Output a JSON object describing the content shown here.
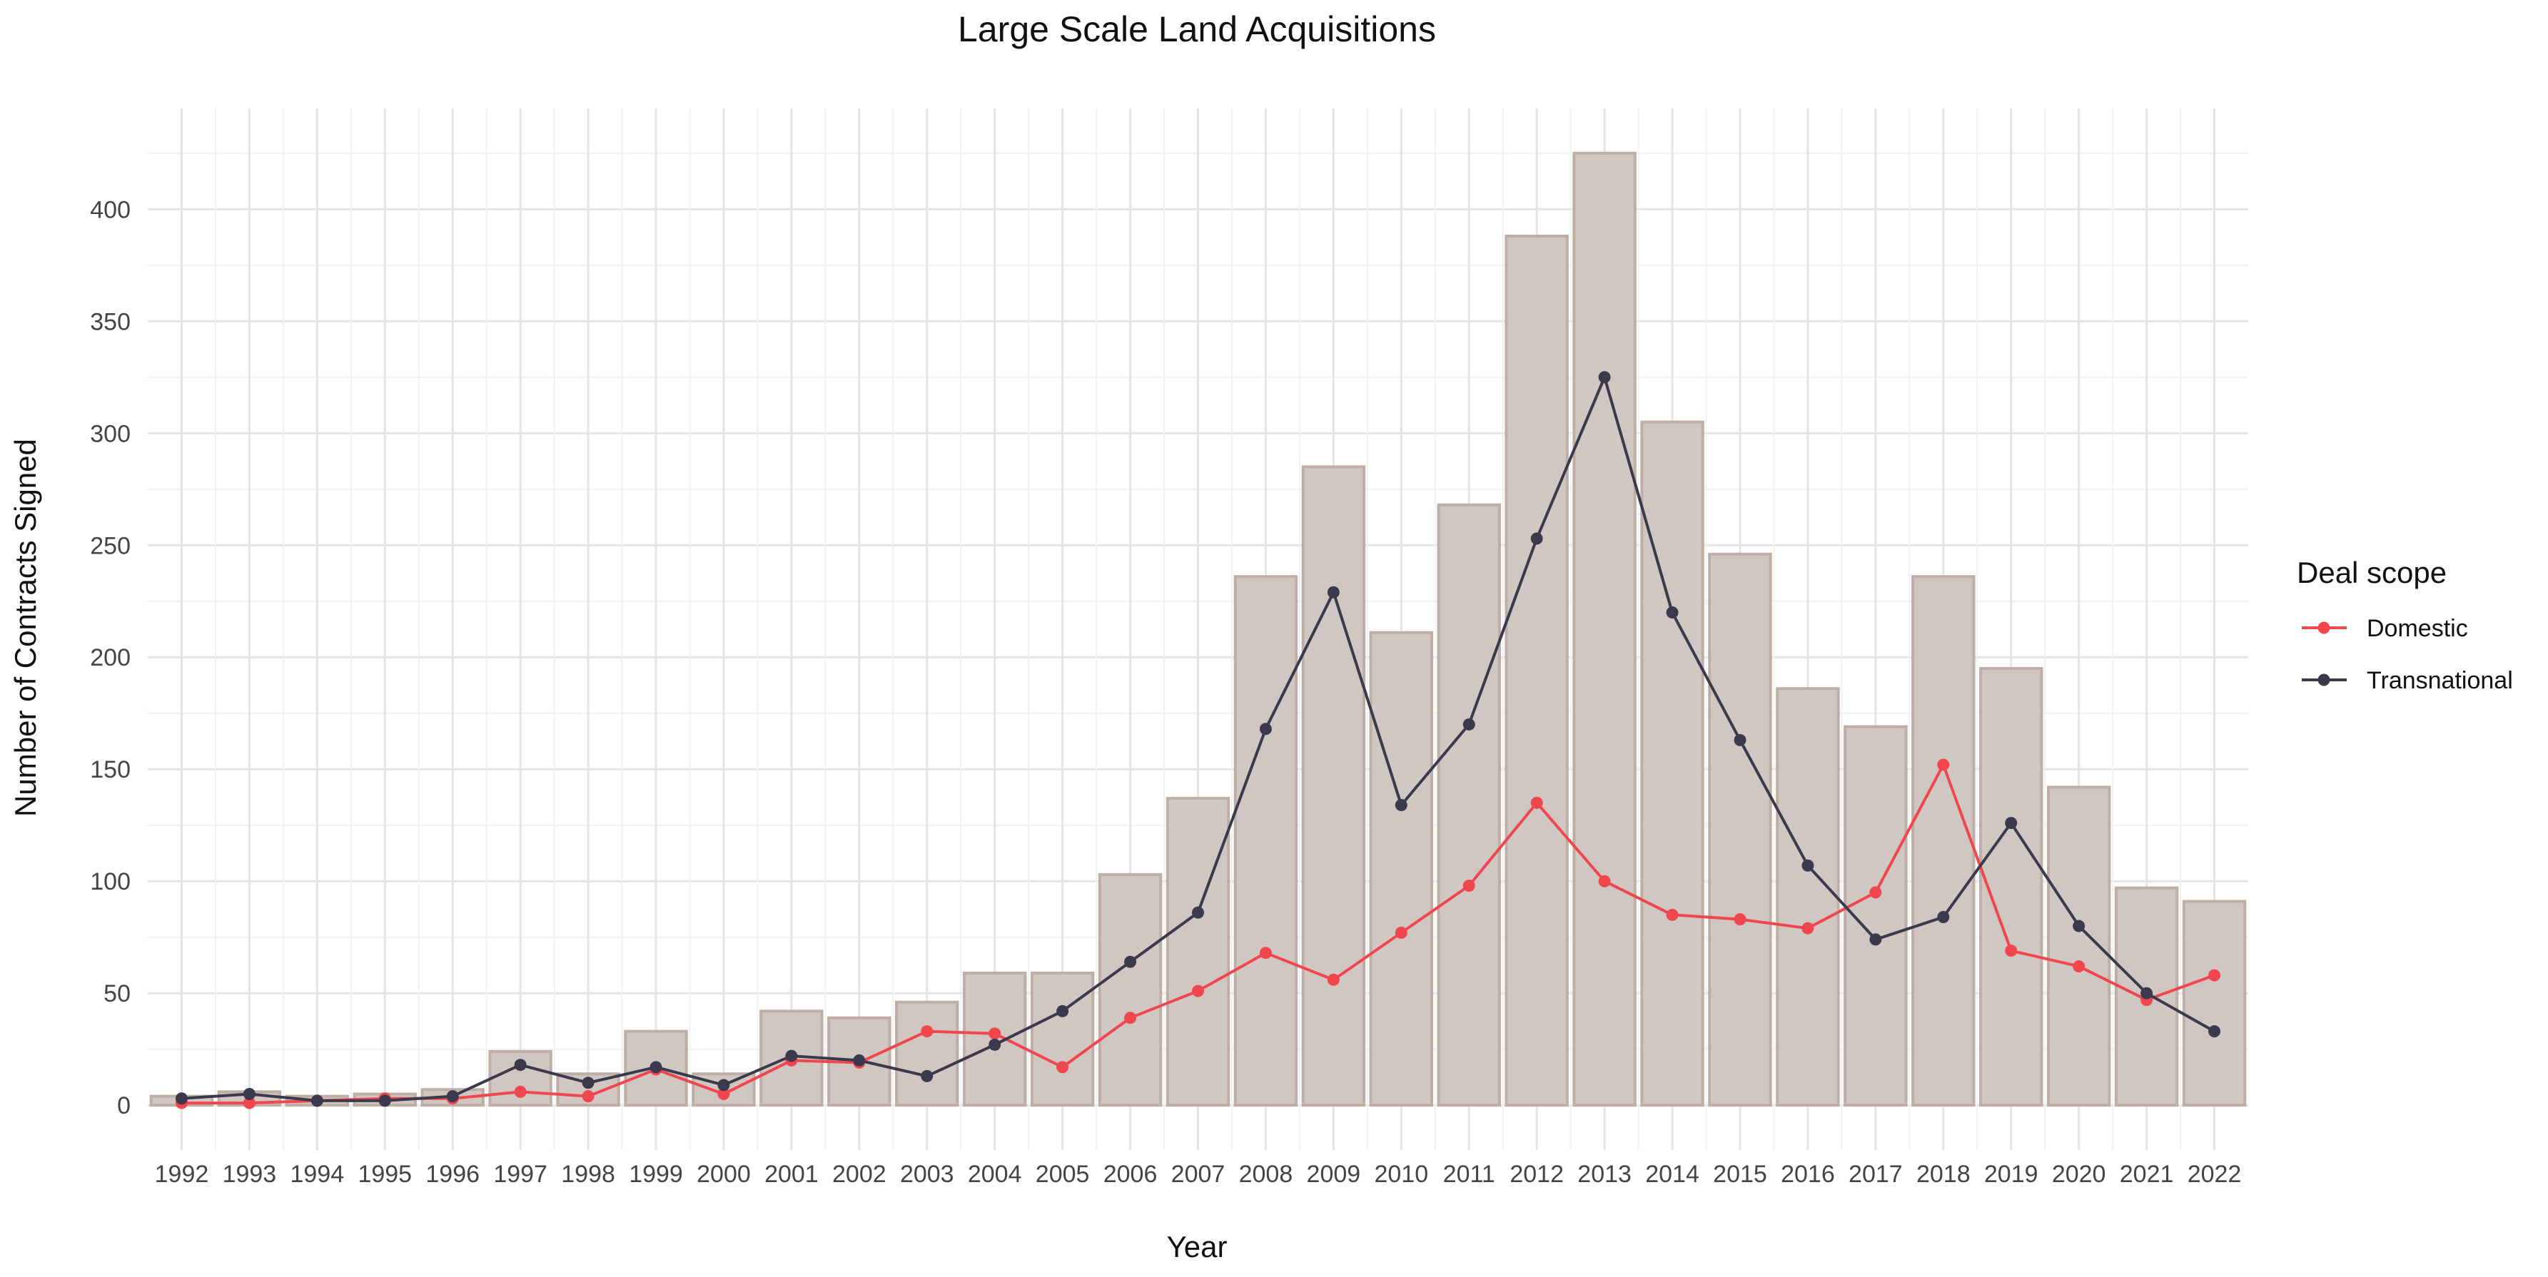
{
  "chart_data": {
    "type": "bar+line",
    "title": "Large Scale Land Acquisitions",
    "xlabel": "Year",
    "ylabel": "Number of Contracts Signed",
    "ylim": [
      -20,
      445
    ],
    "yticks": [
      0,
      50,
      100,
      150,
      200,
      250,
      300,
      350,
      400
    ],
    "grid": true,
    "legend_position": "right",
    "legend_title": "Deal scope",
    "categories": [
      "1992",
      "1993",
      "1994",
      "1995",
      "1996",
      "1997",
      "1998",
      "1999",
      "2000",
      "2001",
      "2002",
      "2003",
      "2004",
      "2005",
      "2006",
      "2007",
      "2008",
      "2009",
      "2010",
      "2011",
      "2012",
      "2013",
      "2014",
      "2015",
      "2016",
      "2017",
      "2018",
      "2019",
      "2020",
      "2021",
      "2022"
    ],
    "bar_values": [
      4,
      6,
      4,
      5,
      7,
      24,
      14,
      33,
      14,
      42,
      39,
      46,
      59,
      59,
      103,
      137,
      236,
      285,
      211,
      268,
      388,
      425,
      305,
      246,
      186,
      169,
      236,
      195,
      142,
      97,
      91
    ],
    "series": [
      {
        "name": "Domestic",
        "color": "#f0474f",
        "values": [
          1,
          1,
          2,
          3,
          3,
          6,
          4,
          16,
          5,
          20,
          19,
          33,
          32,
          17,
          39,
          51,
          68,
          56,
          77,
          98,
          135,
          100,
          85,
          83,
          79,
          95,
          152,
          69,
          62,
          47,
          58
        ]
      },
      {
        "name": "Transnational",
        "color": "#3a3a4c",
        "values": [
          3,
          5,
          2,
          2,
          4,
          18,
          10,
          17,
          9,
          22,
          20,
          13,
          27,
          42,
          64,
          86,
          168,
          229,
          134,
          170,
          253,
          325,
          220,
          163,
          107,
          74,
          84,
          126,
          80,
          50,
          33
        ]
      }
    ],
    "colors": {
      "bar_fill": "#d1c7c2",
      "bar_stroke": "#bfaea5",
      "grid_major": "#e4e4e4",
      "grid_minor": "#f1f1f1",
      "text": "#111111",
      "tick_text": "#444444"
    }
  }
}
